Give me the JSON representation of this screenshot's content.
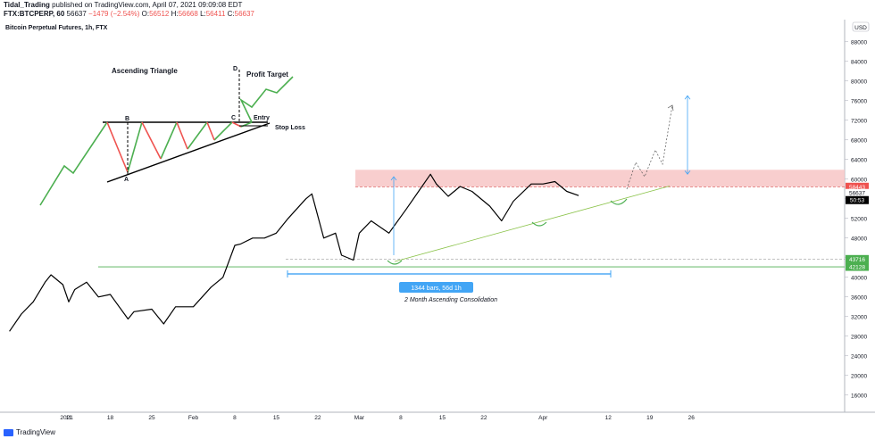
{
  "header": {
    "author": "Tidal_Trading",
    "published": "published on TradingView.com, April 07, 2021 09:09:08 EDT",
    "symbol": "FTX:BTCPERP, 60",
    "last_price": "56637",
    "change": "−1479 (−2.54%)",
    "ohlc": {
      "o_label": "O:",
      "o": "56512",
      "h_label": "H:",
      "h": "56668",
      "l_label": "L:",
      "l": "56411",
      "c_label": "C:",
      "c": "56637"
    }
  },
  "footer": {
    "brand": "TradingView"
  },
  "colors": {
    "green": "#4caf50",
    "red": "#ef5350",
    "zone": "#f7c5c5",
    "arrow_blue": "#42a5f5",
    "price_line": "#000000"
  },
  "chart_data": {
    "type": "line",
    "title": "Bitcoin Perpetual Futures, 1h, FTX",
    "currency": "USD",
    "y_ticks": [
      16000,
      20000,
      24000,
      28000,
      32000,
      36000,
      40000,
      44000,
      48000,
      52000,
      56000,
      60000,
      64000,
      68000,
      72000,
      76000,
      80000,
      84000,
      88000
    ],
    "ylim": [
      12500,
      92500
    ],
    "x_ticks": [
      "2021",
      "11",
      "18",
      "25",
      "Feb",
      "8",
      "15",
      "22",
      "Mar",
      "8",
      "15",
      "22",
      "Apr",
      "12",
      "19",
      "26"
    ],
    "series": [
      {
        "x": [
          "2021-01-01",
          "2021-01-03",
          "2021-01-05",
          "2021-01-07",
          "2021-01-08",
          "2021-01-10",
          "2021-01-11",
          "2021-01-12",
          "2021-01-14",
          "2021-01-16",
          "2021-01-18",
          "2021-01-21",
          "2021-01-22",
          "2021-01-25",
          "2021-01-27",
          "2021-01-29",
          "2021-02-01",
          "2021-02-04",
          "2021-02-06",
          "2021-02-08",
          "2021-02-09",
          "2021-02-11",
          "2021-02-13",
          "2021-02-15",
          "2021-02-17",
          "2021-02-20",
          "2021-02-21",
          "2021-02-23",
          "2021-02-25",
          "2021-02-26",
          "2021-02-28",
          "2021-03-01",
          "2021-03-03",
          "2021-03-06",
          "2021-03-09",
          "2021-03-11",
          "2021-03-13",
          "2021-03-14",
          "2021-03-16",
          "2021-03-18",
          "2021-03-20",
          "2021-03-23",
          "2021-03-25",
          "2021-03-27",
          "2021-03-30",
          "2021-04-01",
          "2021-04-03",
          "2021-04-05",
          "2021-04-07"
        ],
        "y": [
          29000,
          32500,
          35000,
          39000,
          40500,
          38500,
          35000,
          37500,
          39000,
          36000,
          36500,
          31500,
          33000,
          33500,
          30500,
          34000,
          34000,
          38000,
          40000,
          46500,
          46800,
          48000,
          48000,
          49000,
          52000,
          56000,
          57000,
          48000,
          49000,
          44500,
          43500,
          49000,
          51500,
          49000,
          54000,
          57500,
          61000,
          59000,
          56500,
          58500,
          57500,
          54500,
          51500,
          55500,
          59000,
          59000,
          59500,
          57500,
          56637
        ]
      }
    ],
    "levels": {
      "resistance_top": 61900,
      "resistance_dashed": 58443,
      "current_price": 56637,
      "support_dashed": 43716,
      "support_solid": 42128
    },
    "price_labels": [
      "58443",
      "56637",
      "50:53",
      "43716",
      "42128"
    ],
    "annotations": {
      "range_box": "1344 bars, 56d 1h",
      "range_caption": "2 Month Ascending Consolidation",
      "inset_title": "Ascending Triangle",
      "profit_target": "Profit Target",
      "entry": "Entry",
      "stop_loss": "Stop Loss",
      "points": [
        "A",
        "B",
        "C",
        "D"
      ]
    }
  }
}
